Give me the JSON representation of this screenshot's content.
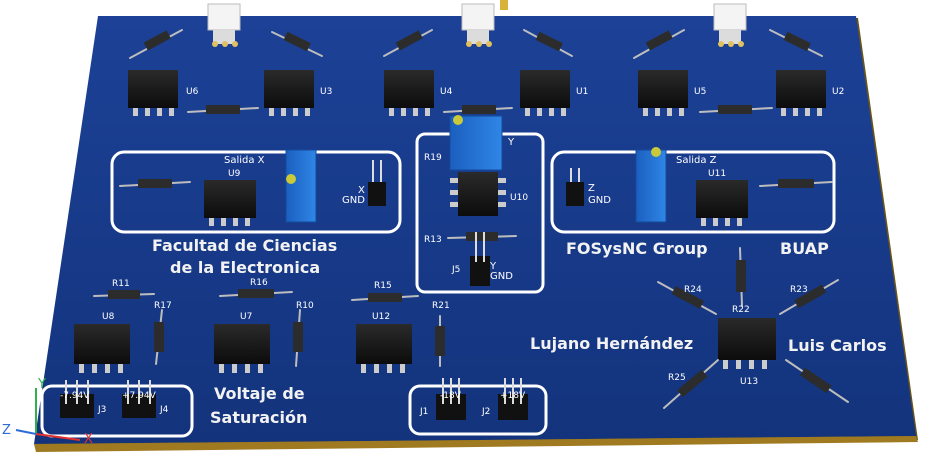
{
  "board": {
    "texts": {
      "facultad_l1": "Facultad de Ciencias",
      "facultad_l2": "de la Electronica",
      "group": "FOSysNC Group",
      "buap": "BUAP",
      "lujano": "Lujano Hernández",
      "luis": "Luis Carlos",
      "voltaje_l1": "Voltaje de",
      "voltaje_l2": "Saturación",
      "salida_x": "Salida X",
      "salida_z": "Salida Z",
      "gnd": "GND",
      "x": "X",
      "y": "Y",
      "z": "Z",
      "minus_power": "-7.94V",
      "plus_power": "+7.94V",
      "minus_18": "-18V",
      "plus_18": "+18V"
    },
    "refs": {
      "u1": "U1",
      "u2": "U2",
      "u3": "U3",
      "u4": "U4",
      "u5": "U5",
      "u6": "U6",
      "u7": "U7",
      "u8": "U8",
      "u9": "U9",
      "u10": "U10",
      "u11": "U11",
      "u12": "U12",
      "u13": "U13",
      "r10": "R10",
      "r11": "R11",
      "r13": "R13",
      "r15": "R15",
      "r16": "R16",
      "r17": "R17",
      "r19": "R19",
      "r21": "R21",
      "r22": "R22",
      "r23": "R23",
      "r24": "R24",
      "r25": "R25",
      "j1": "J1",
      "j2": "J2",
      "j3": "J3",
      "j4": "J4",
      "j5": "J5"
    },
    "colors": {
      "board": "#163a8c",
      "board_edge": "#c89a2a",
      "silk": "#ffffff",
      "chip": "#141414",
      "trimmer": "#1f6fd0",
      "pin": "#d8d8d8"
    }
  },
  "axes": {
    "x": "X",
    "y": "Y",
    "z": "Z"
  }
}
